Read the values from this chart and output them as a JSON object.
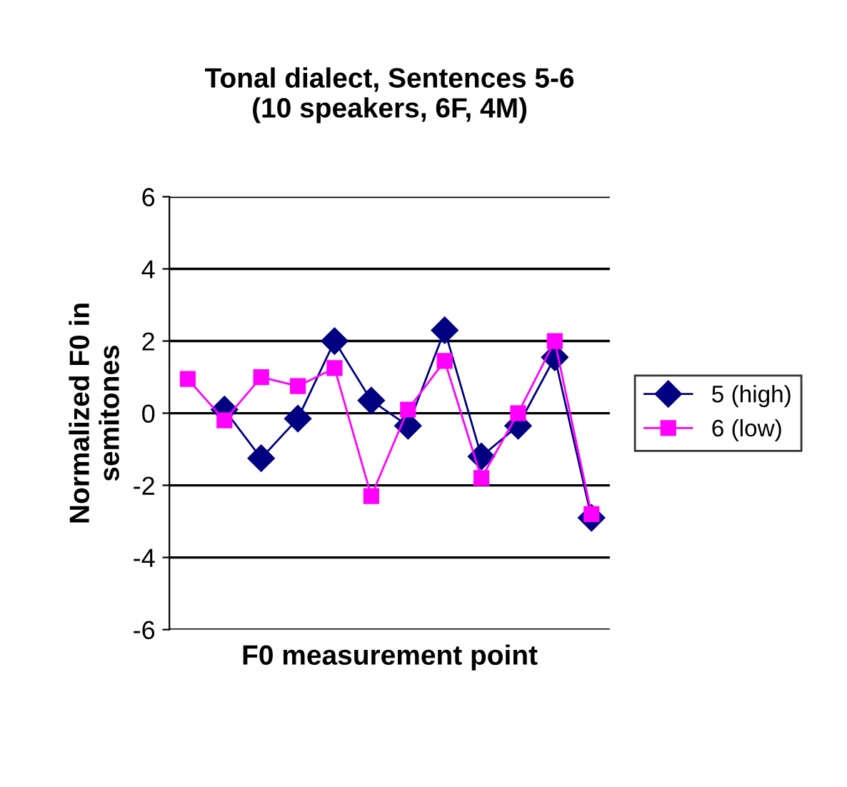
{
  "chart_data": {
    "type": "line",
    "title": "Tonal dialect, Sentences 5-6\n(10 speakers, 6F, 4M)",
    "xlabel": "F0 measurement point",
    "ylabel": "Normalized F0 in\nsemitones",
    "categories": [
      null,
      null,
      null,
      null,
      null,
      null,
      null,
      null,
      null,
      null,
      null,
      null
    ],
    "series": [
      {
        "name": "5 (high)",
        "color": "#000080",
        "marker": "diamond",
        "values": [
          null,
          0.1,
          -1.25,
          -0.15,
          2.0,
          0.35,
          -0.35,
          2.3,
          -1.2,
          -0.35,
          1.55,
          -2.9
        ]
      },
      {
        "name": "6 (low)",
        "color": "#ff00ff",
        "marker": "square",
        "values": [
          0.95,
          -0.2,
          1.0,
          0.75,
          1.25,
          -2.3,
          0.1,
          1.45,
          -1.8,
          0.0,
          2.0,
          -2.8
        ]
      }
    ],
    "ylim": [
      -6,
      6
    ],
    "yticks": [
      -6,
      -4,
      -2,
      0,
      2,
      4,
      6
    ],
    "grid": "y",
    "legend": "right"
  }
}
